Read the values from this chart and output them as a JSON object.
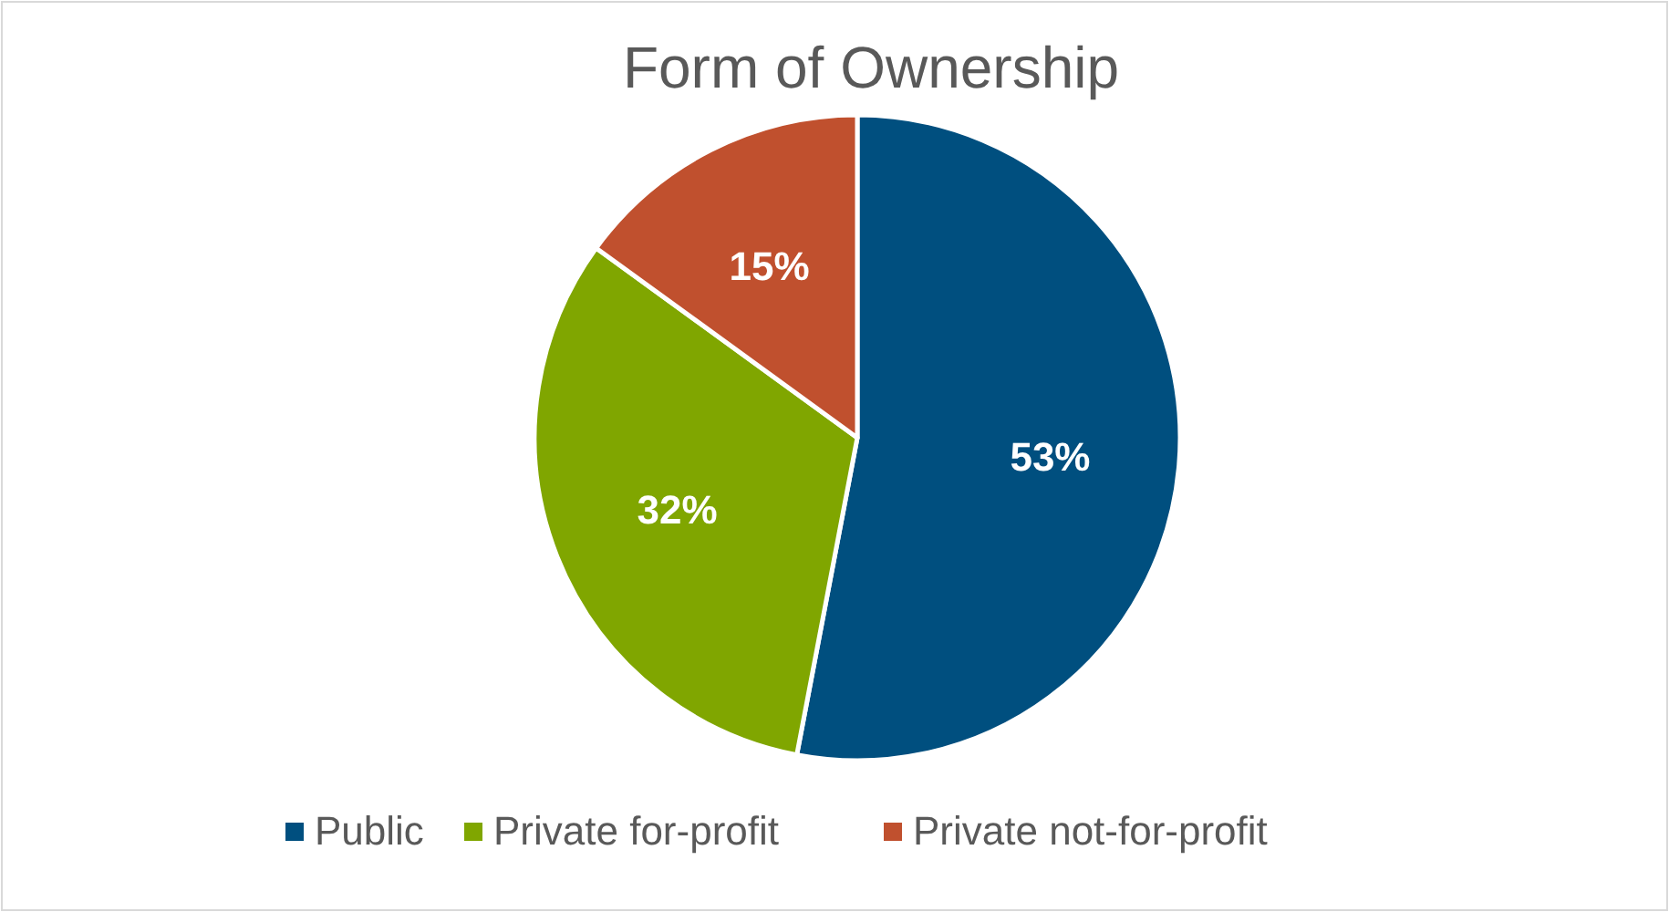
{
  "chart_data": {
    "type": "pie",
    "title": "Form of Ownership",
    "categories": [
      "Public",
      "Private for-profit",
      "Private not-for-profit"
    ],
    "values": [
      53,
      32,
      15
    ],
    "colors": [
      "#004f7f",
      "#80a600",
      "#c0502e"
    ],
    "value_labels": [
      "53%",
      "32%",
      "15%"
    ],
    "legend": "bottom"
  }
}
